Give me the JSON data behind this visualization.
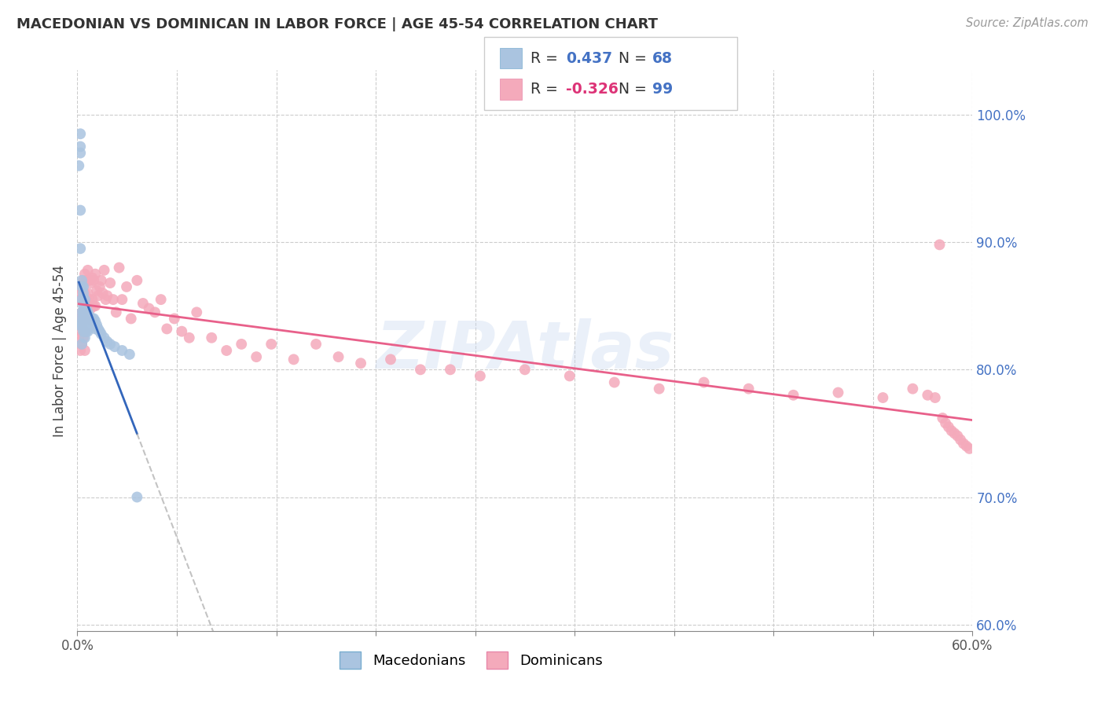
{
  "title": "MACEDONIAN VS DOMINICAN IN LABOR FORCE | AGE 45-54 CORRELATION CHART",
  "source": "Source: ZipAtlas.com",
  "ylabel": "In Labor Force | Age 45-54",
  "xlim": [
    0.0,
    0.6
  ],
  "ylim": [
    0.595,
    1.035
  ],
  "y_ticks": [
    0.6,
    0.7,
    0.8,
    0.9,
    1.0
  ],
  "y_tick_labels": [
    "60.0%",
    "70.0%",
    "80.0%",
    "90.0%",
    "100.0%"
  ],
  "blue_R": 0.437,
  "blue_N": 68,
  "pink_R": -0.326,
  "pink_N": 99,
  "blue_color": "#aac4e0",
  "blue_edge_color": "#7aaed0",
  "blue_line_color": "#3366bb",
  "blue_extrap_color": "#aaccdd",
  "pink_color": "#f4aabb",
  "pink_edge_color": "#e888aa",
  "pink_line_color": "#e8608a",
  "legend_label_blue": "Macedonians",
  "legend_label_pink": "Dominicans",
  "blue_dots_x": [
    0.001,
    0.001,
    0.002,
    0.002,
    0.002,
    0.002,
    0.002,
    0.003,
    0.003,
    0.003,
    0.003,
    0.003,
    0.003,
    0.003,
    0.004,
    0.004,
    0.004,
    0.004,
    0.004,
    0.004,
    0.004,
    0.005,
    0.005,
    0.005,
    0.005,
    0.005,
    0.005,
    0.005,
    0.005,
    0.005,
    0.006,
    0.006,
    0.006,
    0.006,
    0.006,
    0.006,
    0.006,
    0.007,
    0.007,
    0.007,
    0.007,
    0.007,
    0.007,
    0.008,
    0.008,
    0.008,
    0.008,
    0.009,
    0.009,
    0.009,
    0.01,
    0.01,
    0.01,
    0.011,
    0.011,
    0.012,
    0.012,
    0.013,
    0.014,
    0.015,
    0.016,
    0.018,
    0.02,
    0.022,
    0.025,
    0.03,
    0.035,
    0.04
  ],
  "blue_dots_y": [
    0.835,
    0.96,
    0.985,
    0.975,
    0.97,
    0.925,
    0.895,
    0.87,
    0.865,
    0.855,
    0.845,
    0.84,
    0.835,
    0.82,
    0.865,
    0.86,
    0.85,
    0.845,
    0.84,
    0.835,
    0.83,
    0.855,
    0.85,
    0.845,
    0.84,
    0.838,
    0.835,
    0.833,
    0.83,
    0.825,
    0.848,
    0.845,
    0.842,
    0.84,
    0.838,
    0.835,
    0.83,
    0.845,
    0.842,
    0.84,
    0.838,
    0.835,
    0.83,
    0.842,
    0.84,
    0.838,
    0.835,
    0.84,
    0.838,
    0.835,
    0.84,
    0.838,
    0.835,
    0.84,
    0.835,
    0.838,
    0.832,
    0.835,
    0.832,
    0.83,
    0.828,
    0.825,
    0.822,
    0.82,
    0.818,
    0.815,
    0.812,
    0.7
  ],
  "pink_dots_x": [
    0.001,
    0.001,
    0.002,
    0.002,
    0.002,
    0.002,
    0.002,
    0.003,
    0.003,
    0.003,
    0.003,
    0.004,
    0.004,
    0.004,
    0.004,
    0.005,
    0.005,
    0.005,
    0.005,
    0.005,
    0.006,
    0.006,
    0.006,
    0.007,
    0.007,
    0.007,
    0.008,
    0.008,
    0.008,
    0.009,
    0.009,
    0.01,
    0.01,
    0.01,
    0.011,
    0.011,
    0.012,
    0.012,
    0.013,
    0.014,
    0.015,
    0.016,
    0.017,
    0.018,
    0.019,
    0.02,
    0.022,
    0.024,
    0.026,
    0.028,
    0.03,
    0.033,
    0.036,
    0.04,
    0.044,
    0.048,
    0.052,
    0.056,
    0.06,
    0.065,
    0.07,
    0.075,
    0.08,
    0.09,
    0.1,
    0.11,
    0.12,
    0.13,
    0.145,
    0.16,
    0.175,
    0.19,
    0.21,
    0.23,
    0.25,
    0.27,
    0.3,
    0.33,
    0.36,
    0.39,
    0.42,
    0.45,
    0.48,
    0.51,
    0.54,
    0.56,
    0.57,
    0.575,
    0.578,
    0.58,
    0.582,
    0.584,
    0.586,
    0.588,
    0.59,
    0.592,
    0.594,
    0.596,
    0.598
  ],
  "pink_dots_y": [
    0.84,
    0.825,
    0.865,
    0.855,
    0.84,
    0.83,
    0.815,
    0.86,
    0.845,
    0.835,
    0.82,
    0.87,
    0.855,
    0.84,
    0.825,
    0.875,
    0.86,
    0.845,
    0.83,
    0.815,
    0.87,
    0.855,
    0.84,
    0.878,
    0.86,
    0.843,
    0.87,
    0.855,
    0.84,
    0.868,
    0.848,
    0.872,
    0.855,
    0.838,
    0.87,
    0.85,
    0.875,
    0.85,
    0.862,
    0.858,
    0.865,
    0.87,
    0.86,
    0.878,
    0.855,
    0.858,
    0.868,
    0.855,
    0.845,
    0.88,
    0.855,
    0.865,
    0.84,
    0.87,
    0.852,
    0.848,
    0.845,
    0.855,
    0.832,
    0.84,
    0.83,
    0.825,
    0.845,
    0.825,
    0.815,
    0.82,
    0.81,
    0.82,
    0.808,
    0.82,
    0.81,
    0.805,
    0.808,
    0.8,
    0.8,
    0.795,
    0.8,
    0.795,
    0.79,
    0.785,
    0.79,
    0.785,
    0.78,
    0.782,
    0.778,
    0.785,
    0.78,
    0.778,
    0.898,
    0.762,
    0.758,
    0.755,
    0.752,
    0.75,
    0.748,
    0.745,
    0.742,
    0.74,
    0.738
  ]
}
